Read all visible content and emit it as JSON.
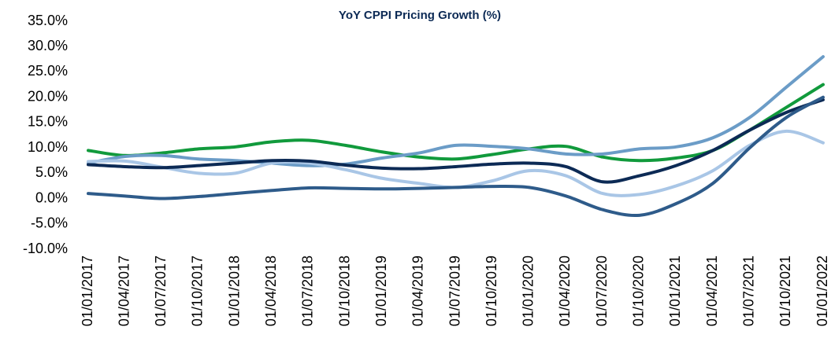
{
  "chart_data": {
    "type": "line",
    "title": "YoY CPPI Pricing Growth (%)",
    "categories": [
      "01/01/2017",
      "01/04/2017",
      "01/07/2017",
      "01/10/2017",
      "01/01/2018",
      "01/04/2018",
      "01/07/2018",
      "01/10/2018",
      "01/01/2019",
      "01/04/2019",
      "01/07/2019",
      "01/10/2019",
      "01/01/2020",
      "01/04/2020",
      "01/07/2020",
      "01/10/2020",
      "01/01/2021",
      "01/04/2021",
      "01/07/2021",
      "01/10/2021",
      "01/01/2022"
    ],
    "series": [
      {
        "color": "#119a3c",
        "values": [
          9.5,
          8.5,
          9,
          9.8,
          10.2,
          11.2,
          11.5,
          10.5,
          9.2,
          8.2,
          7.8,
          8.7,
          9.8,
          10.3,
          8.2,
          7.5,
          8,
          9.5,
          13.5,
          18,
          22.5
        ]
      },
      {
        "color": "#6b9cc7",
        "values": [
          7,
          8.3,
          8.5,
          7.8,
          7.5,
          7,
          6.5,
          6.8,
          8,
          9,
          10.5,
          10.3,
          9.8,
          8.8,
          8.8,
          9.8,
          10.2,
          12,
          16,
          22,
          28
        ]
      },
      {
        "color": "#a9c6e6",
        "values": [
          7.3,
          7.4,
          6.2,
          5,
          5,
          7,
          7,
          5.7,
          4,
          3,
          2.2,
          3.5,
          5.5,
          4.5,
          1,
          0.8,
          2.5,
          5.5,
          10.5,
          13.3,
          11
        ]
      },
      {
        "color": "#0c2a55",
        "values": [
          6.7,
          6.3,
          6.1,
          6.5,
          7,
          7.5,
          7.4,
          6.6,
          6,
          5.9,
          6.3,
          6.8,
          7,
          6.3,
          3.3,
          4.5,
          6.5,
          9.5,
          13.5,
          17,
          19.5
        ]
      },
      {
        "color": "#2e5b8a",
        "values": [
          1,
          0.5,
          0,
          0.4,
          1,
          1.6,
          2.1,
          2,
          1.9,
          2,
          2.2,
          2.4,
          2.2,
          0.5,
          -2.2,
          -3.3,
          -1,
          3,
          10,
          16,
          20
        ]
      }
    ],
    "ylim": [
      -10,
      35
    ],
    "yticks": [
      {
        "value": -10,
        "label": "-10.0%"
      },
      {
        "value": -5,
        "label": "-5.0%"
      },
      {
        "value": 0,
        "label": "0.0%"
      },
      {
        "value": 5,
        "label": "5.0%"
      },
      {
        "value": 10,
        "label": "10.0%"
      },
      {
        "value": 15,
        "label": "15.0%"
      },
      {
        "value": 20,
        "label": "20.0%"
      },
      {
        "value": 25,
        "label": "25.0%"
      },
      {
        "value": 30,
        "label": "30.0%"
      },
      {
        "value": 35,
        "label": "35.0%"
      }
    ]
  }
}
